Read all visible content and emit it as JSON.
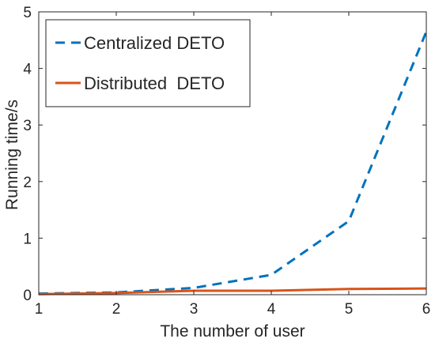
{
  "chart_data": {
    "type": "line",
    "title": "",
    "xlabel": "The number of user",
    "ylabel": "Running time/s",
    "xlim": [
      1,
      6
    ],
    "ylim": [
      0,
      5
    ],
    "xticks": [
      "1",
      "2",
      "3",
      "4",
      "5",
      "6"
    ],
    "yticks": [
      "0",
      "1",
      "2",
      "3",
      "4",
      "5"
    ],
    "grid": false,
    "legend_position": "top-left",
    "x": [
      1,
      2,
      3,
      4,
      5,
      6
    ],
    "series": [
      {
        "name": "Centralized DETO",
        "values": [
          0.02,
          0.04,
          0.12,
          0.35,
          1.3,
          4.65
        ],
        "color": "#0072BD",
        "style": "dashed"
      },
      {
        "name": "Distributed  DETO",
        "values": [
          0.01,
          0.03,
          0.07,
          0.07,
          0.1,
          0.11
        ],
        "color": "#D95319",
        "style": "solid"
      }
    ]
  }
}
